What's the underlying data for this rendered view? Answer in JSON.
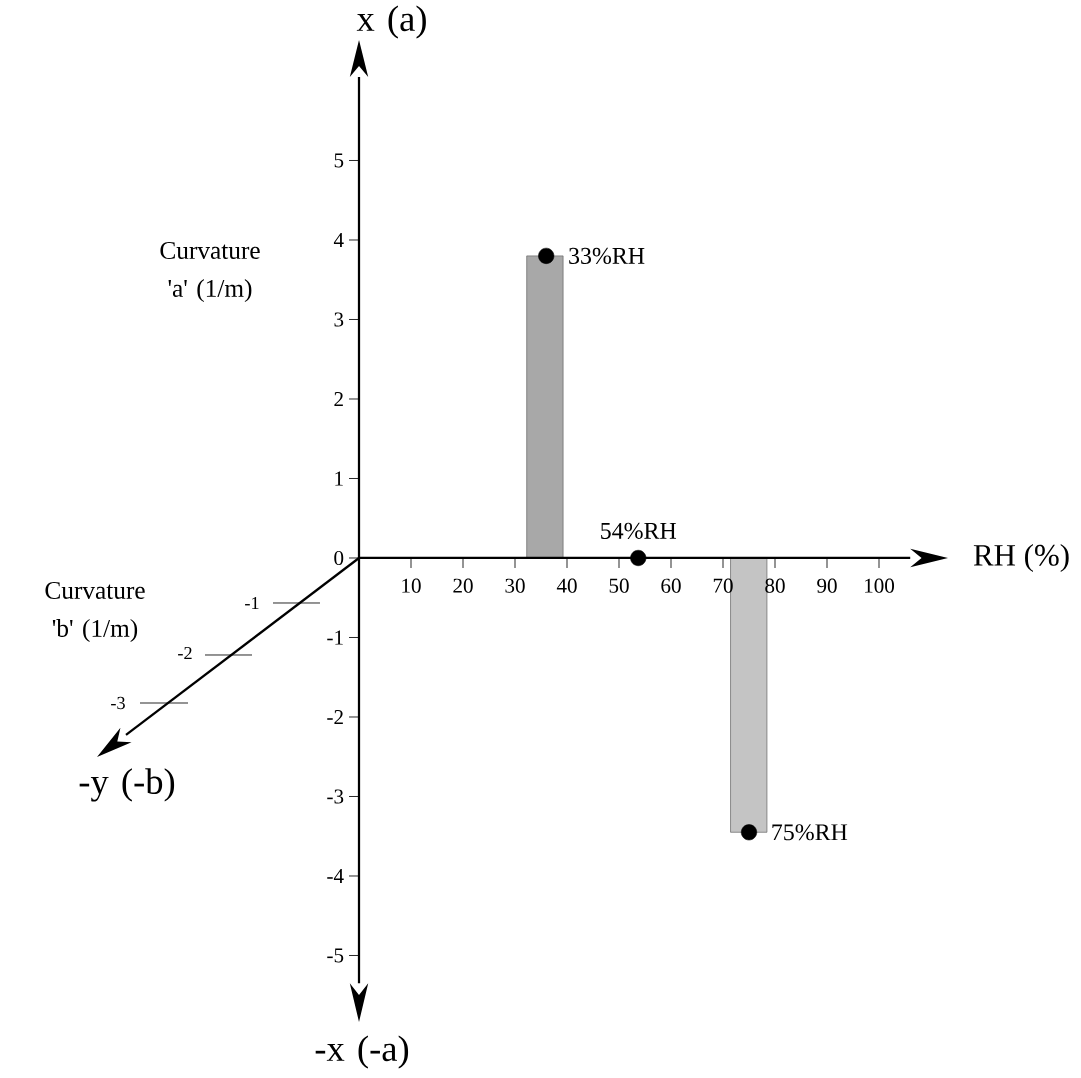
{
  "chart_data": {
    "type": "bar",
    "ylabel": "Curvature 'a' (1/m)",
    "xlabel": "RH (%)",
    "xlim": [
      0,
      106
    ],
    "ylim": [
      -5.35,
      6.05
    ],
    "xticks": [
      10,
      20,
      30,
      40,
      50,
      60,
      70,
      80,
      90,
      100
    ],
    "yticks": [
      -5,
      -4,
      -3,
      -2,
      -1,
      0,
      1,
      2,
      3,
      4,
      5
    ],
    "marker": "circle",
    "series": [
      {
        "x": [
          35.75
        ],
        "values": [
          3.8
        ],
        "color": "#a8a8a8"
      },
      {
        "x": [
          74.95
        ],
        "values": [
          -3.45
        ],
        "color": "#c4c4c4"
      },
      {
        "type": "scatter",
        "x": [
          36,
          53.7,
          75
        ],
        "values": [
          3.8,
          0,
          -3.45
        ],
        "color": "#000000"
      }
    ],
    "annotations": [
      {
        "text": "33%RH",
        "x": 36,
        "y": 3.8
      },
      {
        "text": "54%RH",
        "x": 53.7,
        "y": 0
      },
      {
        "text": "75%RH",
        "x": 75,
        "y": -3.45
      },
      "x (a)",
      "-x (-a)",
      "Curvature 'b' (1/m)",
      "-y (-b)",
      "-1",
      "-2",
      "-3"
    ]
  }
}
